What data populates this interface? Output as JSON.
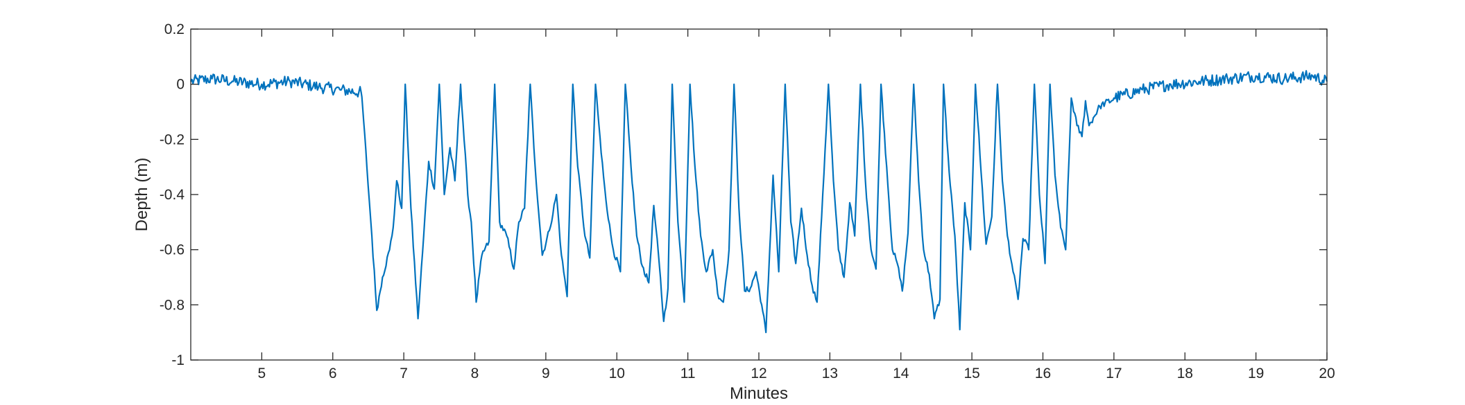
{
  "chart_data": {
    "type": "line",
    "title": "",
    "xlabel": "Minutes",
    "ylabel": "Depth (m)",
    "xlim": [
      4,
      20
    ],
    "ylim": [
      -1,
      0.2
    ],
    "xticks": [
      5,
      6,
      7,
      8,
      9,
      10,
      11,
      12,
      13,
      14,
      15,
      16,
      17,
      18,
      19,
      20
    ],
    "yticks": [
      0.2,
      0,
      -0.2,
      -0.4,
      -0.6,
      -0.8,
      -1
    ],
    "ytick_labels": [
      "0.2",
      "0",
      "-0.2",
      "-0.4",
      "-0.6",
      "-0.8",
      "-1"
    ],
    "grid": false,
    "legend": "none",
    "series": [
      {
        "color": "#0072BD",
        "x": [
          4.0,
          4.3,
          4.6,
          5.0,
          5.4,
          5.8,
          6.1,
          6.4,
          6.42,
          6.48,
          6.55,
          6.62,
          6.7,
          6.8,
          6.85,
          6.9,
          6.97,
          7.02,
          7.1,
          7.2,
          7.28,
          7.35,
          7.43,
          7.5,
          7.57,
          7.65,
          7.72,
          7.8,
          7.9,
          7.95,
          8.02,
          8.1,
          8.2,
          8.28,
          8.35,
          8.45,
          8.55,
          8.62,
          8.7,
          8.78,
          8.85,
          8.95,
          9.05,
          9.15,
          9.22,
          9.3,
          9.38,
          9.45,
          9.55,
          9.62,
          9.7,
          9.78,
          9.88,
          9.95,
          10.05,
          10.12,
          10.2,
          10.28,
          10.36,
          10.45,
          10.52,
          10.6,
          10.66,
          10.72,
          10.78,
          10.86,
          10.95,
          11.03,
          11.1,
          11.18,
          11.26,
          11.35,
          11.42,
          11.5,
          11.58,
          11.65,
          11.72,
          11.8,
          11.88,
          11.96,
          12.04,
          12.1,
          12.2,
          12.28,
          12.37,
          12.45,
          12.52,
          12.6,
          12.68,
          12.75,
          12.82,
          12.9,
          12.98,
          13.05,
          13.12,
          13.2,
          13.28,
          13.35,
          13.43,
          13.5,
          13.58,
          13.65,
          13.72,
          13.8,
          13.88,
          13.95,
          14.02,
          14.1,
          14.18,
          14.25,
          14.32,
          14.4,
          14.47,
          14.55,
          14.6,
          14.68,
          14.76,
          14.83,
          14.9,
          14.98,
          15.05,
          15.13,
          15.2,
          15.28,
          15.36,
          15.43,
          15.5,
          15.58,
          15.65,
          15.72,
          15.8,
          15.88,
          15.95,
          16.03,
          16.1,
          16.17,
          16.25,
          16.32,
          16.4,
          16.48,
          16.55,
          16.6,
          16.65,
          16.8,
          17.0,
          17.4,
          17.8,
          18.2,
          18.6,
          19.0,
          19.4,
          19.8,
          20.0
        ],
        "y": [
          0.01,
          0.02,
          0.01,
          0.0,
          0.01,
          -0.01,
          -0.02,
          -0.03,
          -0.08,
          -0.3,
          -0.55,
          -0.82,
          -0.7,
          -0.6,
          -0.52,
          -0.35,
          -0.45,
          0.0,
          -0.45,
          -0.85,
          -0.55,
          -0.28,
          -0.38,
          0.0,
          -0.4,
          -0.23,
          -0.35,
          0.0,
          -0.4,
          -0.5,
          -0.79,
          -0.62,
          -0.57,
          0.0,
          -0.5,
          -0.55,
          -0.67,
          -0.5,
          -0.45,
          0.0,
          -0.3,
          -0.62,
          -0.53,
          -0.4,
          -0.62,
          -0.77,
          0.0,
          -0.3,
          -0.55,
          -0.63,
          0.0,
          -0.25,
          -0.49,
          -0.6,
          -0.68,
          0.0,
          -0.3,
          -0.55,
          -0.66,
          -0.72,
          -0.44,
          -0.66,
          -0.86,
          -0.74,
          0.0,
          -0.5,
          -0.79,
          0.0,
          -0.3,
          -0.55,
          -0.68,
          -0.6,
          -0.76,
          -0.79,
          -0.6,
          0.0,
          -0.45,
          -0.75,
          -0.74,
          -0.68,
          -0.8,
          -0.9,
          -0.33,
          -0.68,
          0.0,
          -0.5,
          -0.65,
          -0.45,
          -0.62,
          -0.73,
          -0.79,
          -0.4,
          0.0,
          -0.35,
          -0.6,
          -0.7,
          -0.43,
          -0.55,
          0.0,
          -0.35,
          -0.6,
          -0.67,
          0.0,
          -0.3,
          -0.6,
          -0.65,
          -0.75,
          -0.54,
          0.0,
          -0.35,
          -0.6,
          -0.69,
          -0.85,
          -0.78,
          0.0,
          -0.32,
          -0.55,
          -0.89,
          -0.43,
          -0.6,
          0.0,
          -0.32,
          -0.58,
          -0.48,
          0.0,
          -0.35,
          -0.55,
          -0.68,
          -0.78,
          -0.56,
          -0.6,
          0.0,
          -0.4,
          -0.65,
          0.0,
          -0.33,
          -0.52,
          -0.6,
          -0.05,
          -0.15,
          -0.19,
          -0.06,
          -0.15,
          -0.08,
          -0.05,
          -0.02,
          0.0,
          0.01,
          0.02,
          0.03,
          0.02,
          0.03,
          0.01
        ]
      }
    ]
  }
}
